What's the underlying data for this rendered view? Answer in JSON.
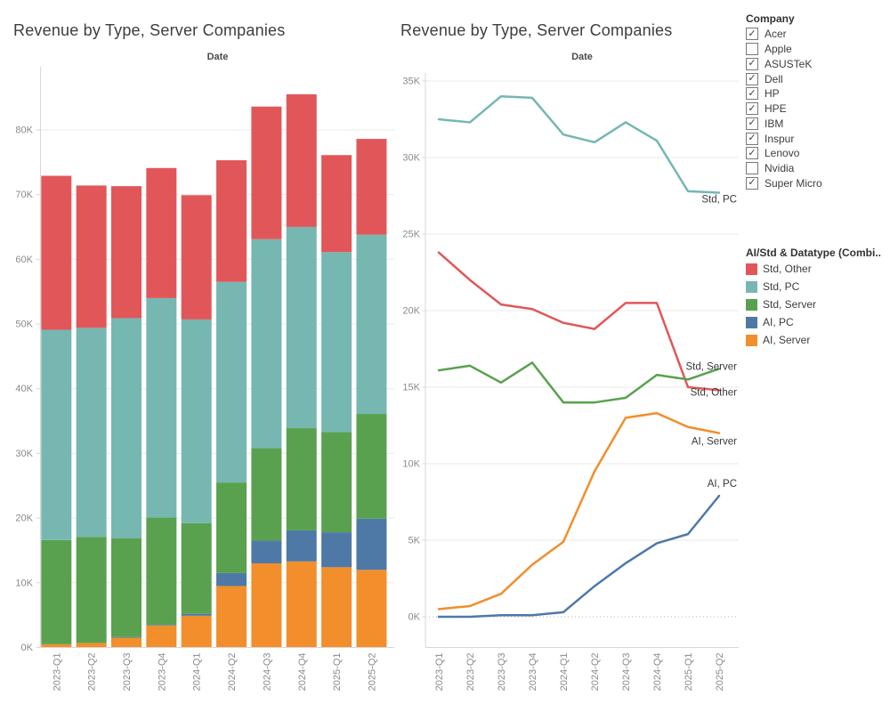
{
  "left_chart": {
    "title": "Revenue by Type, Server Companies",
    "x_axis_title": "Date",
    "y_tick_labels": [
      "0K",
      "10K",
      "20K",
      "30K",
      "40K",
      "50K",
      "60K",
      "70K",
      "80K"
    ]
  },
  "right_chart": {
    "title": "Revenue by Type, Server Companies",
    "x_axis_title": "Date",
    "y_tick_labels": [
      "0K",
      "5K",
      "10K",
      "15K",
      "20K",
      "25K",
      "30K",
      "35K"
    ]
  },
  "company_filter": {
    "title": "Company",
    "items": [
      {
        "label": "Acer",
        "checked": true
      },
      {
        "label": "Apple",
        "checked": false
      },
      {
        "label": "ASUSTeK",
        "checked": true
      },
      {
        "label": "Dell",
        "checked": true
      },
      {
        "label": "HP",
        "checked": true
      },
      {
        "label": "HPE",
        "checked": true
      },
      {
        "label": "IBM",
        "checked": true
      },
      {
        "label": "Inspur",
        "checked": true
      },
      {
        "label": "Lenovo",
        "checked": true
      },
      {
        "label": "Nvidia",
        "checked": false
      },
      {
        "label": "Super Micro",
        "checked": true
      }
    ]
  },
  "color_legend": {
    "title": "AI/Std & Datatype (Combi..",
    "entries": [
      {
        "label": "Std, Other",
        "color": "#e15759"
      },
      {
        "label": "Std, PC",
        "color": "#76b7b2"
      },
      {
        "label": "Std, Server",
        "color": "#59a14f"
      },
      {
        "label": "AI, PC",
        "color": "#4e79a7"
      },
      {
        "label": "AI, Server",
        "color": "#f28e2b"
      }
    ]
  },
  "icons": {
    "check": "✓"
  },
  "theme": {
    "grid": "#e9e9e9",
    "axis": "#d7d7d7",
    "zero_dotted": "#b5b5b5",
    "tick_text": "#8a8a8a",
    "title_text": "#3e3e3e"
  },
  "chart_data": [
    {
      "type": "bar",
      "stacked": true,
      "title": "Revenue by Type, Server Companies",
      "xlabel": "Date",
      "ylabel": "",
      "ylim": [
        0,
        90
      ],
      "ytick_step": 10,
      "unit": "K",
      "grid": true,
      "categories": [
        "2023-Q1",
        "2023-Q2",
        "2023-Q3",
        "2023-Q4",
        "2024-Q1",
        "2024-Q2",
        "2024-Q3",
        "2024-Q4",
        "2025-Q1",
        "2025-Q2"
      ],
      "stack_order_bottom_to_top": [
        "AI, Server",
        "AI, PC",
        "Std, Server",
        "Std, PC",
        "Std, Other"
      ],
      "series": [
        {
          "name": "Std, Other",
          "color": "#e15759",
          "values": [
            23.8,
            22.0,
            20.4,
            20.1,
            19.2,
            18.8,
            20.5,
            20.5,
            15.0,
            14.8
          ]
        },
        {
          "name": "Std, PC",
          "color": "#76b7b2",
          "values": [
            32.5,
            32.3,
            34.0,
            33.9,
            31.5,
            31.0,
            32.3,
            31.1,
            27.8,
            27.7
          ]
        },
        {
          "name": "Std, Server",
          "color": "#59a14f",
          "values": [
            16.1,
            16.4,
            15.3,
            16.6,
            14.0,
            14.0,
            14.3,
            15.8,
            15.5,
            16.2
          ]
        },
        {
          "name": "AI, PC",
          "color": "#4e79a7",
          "values": [
            0.0,
            0.0,
            0.1,
            0.1,
            0.3,
            2.0,
            3.5,
            4.8,
            5.4,
            7.9
          ]
        },
        {
          "name": "AI, Server",
          "color": "#f28e2b",
          "values": [
            0.5,
            0.7,
            1.5,
            3.4,
            4.9,
            9.5,
            13.0,
            13.3,
            12.4,
            12.0
          ]
        }
      ]
    },
    {
      "type": "line",
      "title": "Revenue by Type, Server Companies",
      "xlabel": "Date",
      "ylabel": "",
      "ylim": [
        0,
        35
      ],
      "ytick_step": 5,
      "unit": "K",
      "grid": true,
      "zero_line": "dotted",
      "legend_position": "end-of-line-labels",
      "categories": [
        "2023-Q1",
        "2023-Q2",
        "2023-Q3",
        "2023-Q4",
        "2024-Q1",
        "2024-Q2",
        "2024-Q3",
        "2024-Q4",
        "2025-Q1",
        "2025-Q2"
      ],
      "series": [
        {
          "name": "Std, Other",
          "color": "#e15759",
          "end_label": "Std, Other",
          "values": [
            23.8,
            22.0,
            20.4,
            20.1,
            19.2,
            18.8,
            20.5,
            20.5,
            15.0,
            14.8
          ]
        },
        {
          "name": "Std, PC",
          "color": "#76b7b2",
          "end_label": "Std, PC",
          "values": [
            32.5,
            32.3,
            34.0,
            33.9,
            31.5,
            31.0,
            32.3,
            31.1,
            27.8,
            27.7
          ]
        },
        {
          "name": "Std, Server",
          "color": "#59a14f",
          "end_label": "Std, Server",
          "values": [
            16.1,
            16.4,
            15.3,
            16.6,
            14.0,
            14.0,
            14.3,
            15.8,
            15.5,
            16.2
          ]
        },
        {
          "name": "AI, PC",
          "color": "#4e79a7",
          "end_label": "AI, PC",
          "values": [
            0.0,
            0.0,
            0.1,
            0.1,
            0.3,
            2.0,
            3.5,
            4.8,
            5.4,
            7.9
          ]
        },
        {
          "name": "AI, Server",
          "color": "#f28e2b",
          "end_label": "AI, Server",
          "values": [
            0.5,
            0.7,
            1.5,
            3.4,
            4.9,
            9.5,
            13.0,
            13.3,
            12.4,
            12.0
          ]
        }
      ]
    }
  ]
}
